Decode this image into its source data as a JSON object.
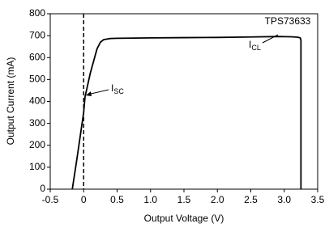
{
  "chart_data": {
    "type": "line",
    "xlabel": "Output Voltage (V)",
    "ylabel": "Output Current (mA)",
    "x": [
      -0.17,
      -0.1,
      0,
      0.02,
      0.1,
      0.2,
      0.25,
      0.3,
      0.4,
      0.5,
      1.0,
      1.5,
      2.0,
      2.5,
      2.9,
      3.1,
      3.2,
      3.24,
      3.25,
      3.25
    ],
    "values": [
      0,
      140,
      350,
      420,
      530,
      640,
      670,
      682,
      687,
      688,
      690,
      691,
      692,
      694,
      696,
      695,
      693,
      690,
      680,
      0
    ],
    "color": "#000000",
    "reference_x": 0,
    "xlim": [
      -0.5,
      3.5
    ],
    "xticks": [
      -0.5,
      0,
      0.5,
      {
        "value": 1,
        "label": "1.0"
      },
      1.5,
      {
        "value": 2,
        "label": "2.0"
      },
      2.5,
      {
        "value": 3,
        "label": "3.0"
      },
      3.5
    ],
    "ylim": [
      0,
      800
    ],
    "yticks": [
      0,
      100,
      200,
      300,
      400,
      500,
      600,
      700,
      800
    ],
    "grid": false,
    "annotations": [
      {
        "text": "TPS73633"
      },
      {
        "text": "I",
        "sub": "CL"
      },
      {
        "text": "I",
        "sub": "SC"
      }
    ]
  }
}
